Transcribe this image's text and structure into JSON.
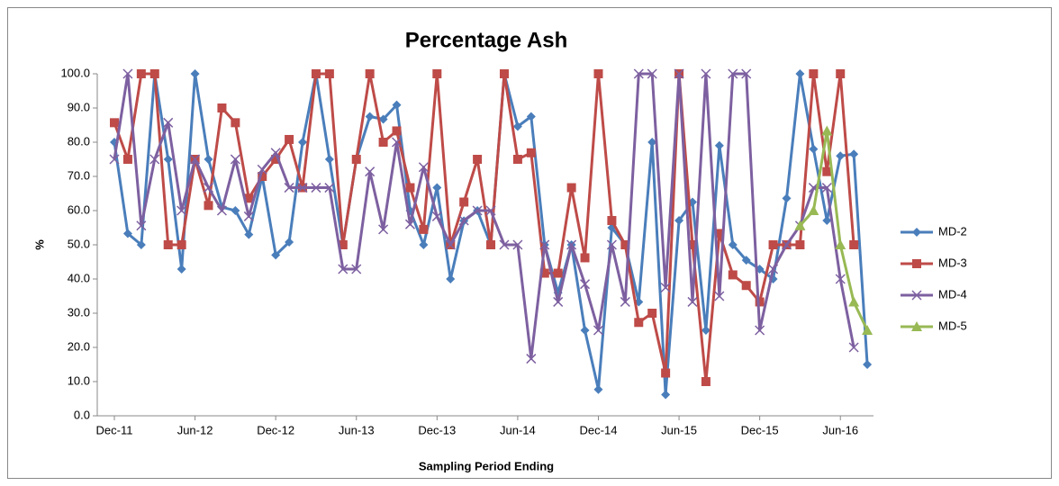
{
  "chart_data": {
    "type": "line",
    "title": "Percentage Ash",
    "x_label": "Sampling Period Ending",
    "y_label": "%",
    "categories": [
      "Dec-11",
      null,
      null,
      null,
      null,
      null,
      "Jun-12",
      null,
      null,
      null,
      null,
      null,
      "Dec-12",
      null,
      null,
      null,
      null,
      null,
      "Jun-13",
      null,
      null,
      null,
      null,
      null,
      "Dec-13",
      null,
      null,
      null,
      null,
      null,
      "Jun-14",
      null,
      null,
      null,
      null,
      null,
      "Dec-14",
      null,
      null,
      null,
      null,
      null,
      "Jun-15",
      null,
      null,
      null,
      null,
      null,
      "Dec-15",
      null,
      null,
      null,
      null,
      null,
      "Jun-16",
      null,
      null
    ],
    "ylim": [
      0,
      100
    ],
    "yticks": [
      {
        "value": 0,
        "label": "0.0"
      },
      {
        "value": 10,
        "label": "10.0"
      },
      {
        "value": 20,
        "label": "20.0"
      },
      {
        "value": 30,
        "label": "30.0"
      },
      {
        "value": 40,
        "label": "40.0"
      },
      {
        "value": 50,
        "label": "50.0"
      },
      {
        "value": 60,
        "label": "60.0"
      },
      {
        "value": 70,
        "label": "70.0"
      },
      {
        "value": 80,
        "label": "80.0"
      },
      {
        "value": 90,
        "label": "90.0"
      },
      {
        "value": 100,
        "label": "100.0"
      }
    ],
    "grid": false,
    "legend": "right",
    "series": [
      {
        "name": "MD-2",
        "color": "#4a7ebb",
        "marker": "diamond",
        "values": [
          80,
          53.3,
          50,
          100,
          75,
          42.9,
          100,
          75,
          61,
          60,
          53,
          70,
          47,
          50.8,
          80,
          100,
          75,
          50,
          75,
          87.5,
          86.7,
          90.9,
          60,
          50,
          66.7,
          40,
          57,
          60,
          50,
          100,
          84.6,
          87.5,
          50,
          36,
          50,
          25,
          7.7,
          55,
          50,
          33.3,
          80,
          6.2,
          57.1,
          62.5,
          25,
          79,
          50,
          45.5,
          42.9,
          40,
          63.6,
          100,
          78,
          57.1,
          76,
          76.5,
          15
        ]
      },
      {
        "name": "MD-3",
        "color": "#be4b48",
        "marker": "square",
        "values": [
          85.7,
          75,
          100,
          100,
          50,
          50,
          75,
          61.5,
          90,
          85.7,
          63.6,
          70,
          75,
          80.8,
          66.7,
          100,
          100,
          50,
          75,
          100,
          80,
          83.3,
          66.7,
          54.5,
          100,
          50,
          62.5,
          75,
          50,
          100,
          75,
          76.9,
          41.7,
          41.7,
          66.7,
          46.2,
          100,
          57.1,
          50,
          27.3,
          30,
          12.5,
          100,
          50,
          10,
          53.3,
          41.2,
          38.1,
          33.3,
          50,
          50,
          50,
          100,
          71.4,
          100,
          50,
          null
        ]
      },
      {
        "name": "MD-4",
        "color": "#7d60a0",
        "marker": "x",
        "values": [
          75,
          100,
          55.6,
          75,
          85.7,
          60,
          75,
          66.7,
          60,
          75,
          58.3,
          72,
          76.9,
          66.7,
          66.7,
          66.7,
          66.7,
          42.9,
          42.9,
          71.4,
          54.5,
          80,
          56,
          72.7,
          58.3,
          50,
          57.1,
          60,
          60,
          50,
          50,
          16.7,
          50,
          33.3,
          50,
          38.5,
          25,
          50,
          33.3,
          100,
          100,
          37.5,
          100,
          33.3,
          100,
          35,
          100,
          100,
          25,
          42.9,
          50,
          55.6,
          66.7,
          66.7,
          40,
          20,
          null
        ]
      },
      {
        "name": "MD-5",
        "color": "#98b954",
        "marker": "triangle",
        "values": [
          null,
          null,
          null,
          null,
          null,
          null,
          null,
          null,
          null,
          null,
          null,
          null,
          null,
          null,
          null,
          null,
          null,
          null,
          null,
          null,
          null,
          null,
          null,
          null,
          null,
          null,
          null,
          null,
          null,
          null,
          null,
          null,
          null,
          null,
          null,
          null,
          null,
          null,
          null,
          null,
          null,
          null,
          null,
          null,
          null,
          null,
          null,
          null,
          null,
          null,
          null,
          55.6,
          60,
          83.3,
          50,
          33.3,
          25
        ]
      }
    ]
  }
}
